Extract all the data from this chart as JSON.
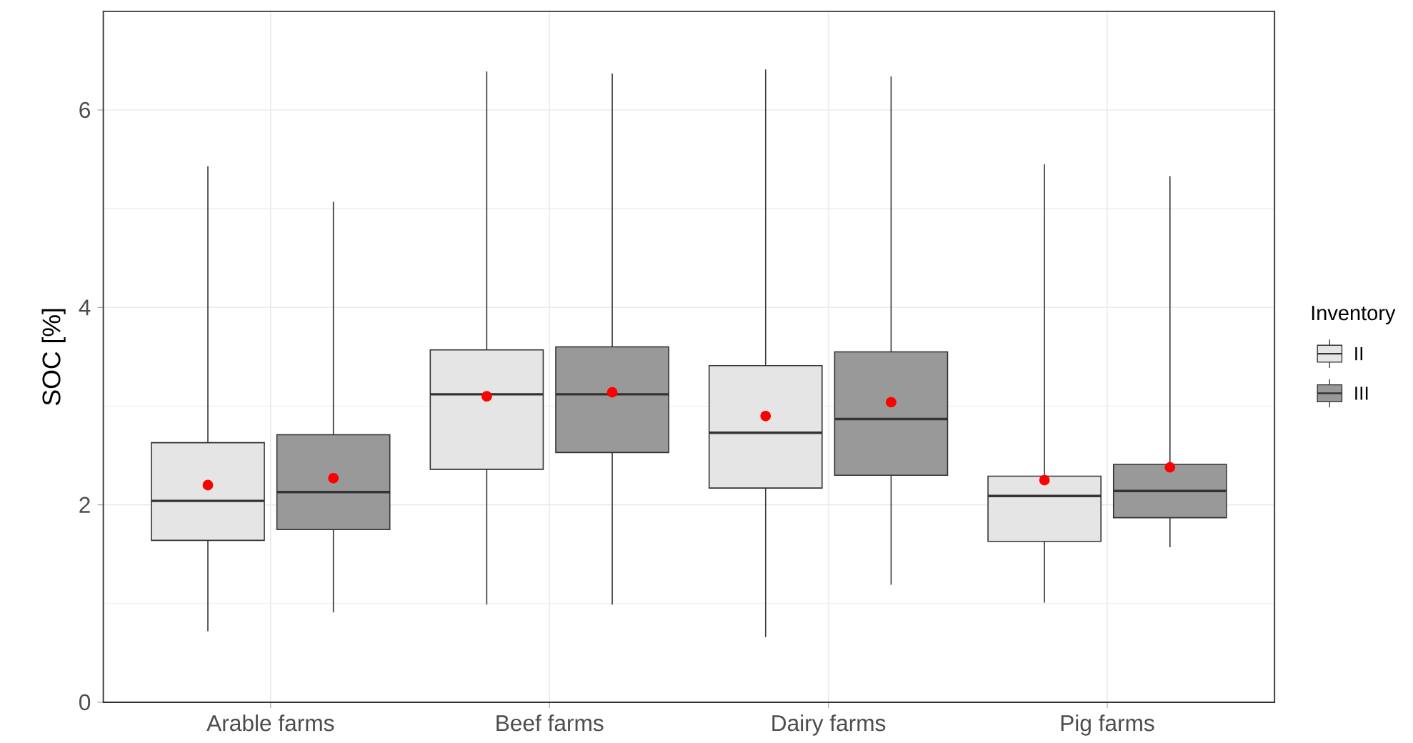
{
  "chart_data": {
    "type": "box",
    "ylabel": "SOC [%]",
    "legend_title": "Inventory",
    "categories": [
      "Arable farms",
      "Beef farms",
      "Dairy farms",
      "Pig farms"
    ],
    "series": [
      {
        "name": "II",
        "color": "#e5e5e5",
        "boxes": [
          {
            "low": 0.72,
            "q1": 1.64,
            "median": 2.04,
            "q3": 2.63,
            "high": 5.43,
            "mean": 2.2
          },
          {
            "low": 0.99,
            "q1": 2.36,
            "median": 3.12,
            "q3": 3.57,
            "high": 6.39,
            "mean": 3.1
          },
          {
            "low": 0.66,
            "q1": 2.17,
            "median": 2.73,
            "q3": 3.41,
            "high": 6.41,
            "mean": 2.9
          },
          {
            "low": 1.01,
            "q1": 1.63,
            "median": 2.09,
            "q3": 2.29,
            "high": 5.45,
            "mean": 2.25
          }
        ]
      },
      {
        "name": "III",
        "color": "#999999",
        "boxes": [
          {
            "low": 0.91,
            "q1": 1.75,
            "median": 2.13,
            "q3": 2.71,
            "high": 5.07,
            "mean": 2.27
          },
          {
            "low": 0.99,
            "q1": 2.53,
            "median": 3.12,
            "q3": 3.6,
            "high": 6.37,
            "mean": 3.14
          },
          {
            "low": 1.19,
            "q1": 2.3,
            "median": 2.87,
            "q3": 3.55,
            "high": 6.34,
            "mean": 3.04
          },
          {
            "low": 1.57,
            "q1": 1.87,
            "median": 2.14,
            "q3": 2.41,
            "high": 5.33,
            "mean": 2.38
          }
        ]
      }
    ],
    "ylim": [
      0,
      7
    ],
    "yticks": [
      0,
      2,
      4,
      6
    ],
    "grid": true,
    "legend": "right"
  }
}
